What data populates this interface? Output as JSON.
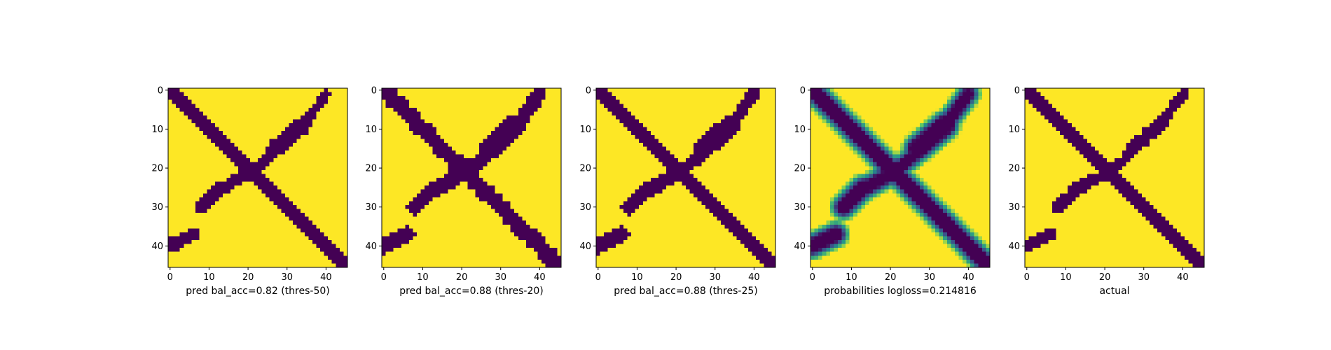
{
  "chart_data": [
    {
      "type": "heatmap",
      "title": "",
      "xlabel": "pred bal_acc=0.82 (thres-50)",
      "ylabel": "",
      "xlim": [
        -0.5,
        45.5
      ],
      "ylim": [
        45.5,
        -0.5
      ],
      "xticks": [
        0,
        10,
        20,
        30,
        40
      ],
      "yticks": [
        0,
        10,
        20,
        30,
        40
      ],
      "grid": false,
      "colormap": "viridis",
      "values": "binary",
      "colors": {
        "low": "#440154",
        "high": "#fde725"
      }
    },
    {
      "type": "heatmap",
      "title": "",
      "xlabel": "pred bal_acc=0.88 (thres-20)",
      "ylabel": "",
      "xlim": [
        -0.5,
        45.5
      ],
      "ylim": [
        45.5,
        -0.5
      ],
      "xticks": [
        0,
        10,
        20,
        30,
        40
      ],
      "yticks": [
        0,
        10,
        20,
        30,
        40
      ],
      "grid": false,
      "colormap": "viridis",
      "values": "binary",
      "colors": {
        "low": "#440154",
        "high": "#fde725"
      }
    },
    {
      "type": "heatmap",
      "title": "",
      "xlabel": "pred bal_acc=0.88 (thres-25)",
      "ylabel": "",
      "xlim": [
        -0.5,
        45.5
      ],
      "ylim": [
        45.5,
        -0.5
      ],
      "xticks": [
        0,
        10,
        20,
        30,
        40
      ],
      "yticks": [
        0,
        10,
        20,
        30,
        40
      ],
      "grid": false,
      "colormap": "viridis",
      "values": "binary",
      "colors": {
        "low": "#440154",
        "high": "#fde725"
      }
    },
    {
      "type": "heatmap",
      "title": "",
      "xlabel": "probabilities logloss=0.214816",
      "ylabel": "",
      "xlim": [
        -0.5,
        45.5
      ],
      "ylim": [
        45.5,
        -0.5
      ],
      "xticks": [
        0,
        10,
        20,
        30,
        40
      ],
      "yticks": [
        0,
        10,
        20,
        30,
        40
      ],
      "grid": false,
      "colormap": "viridis",
      "values": "continuous",
      "colors": {
        "low": "#440154",
        "mid": "#21918c",
        "high": "#fde725"
      }
    },
    {
      "type": "heatmap",
      "title": "",
      "xlabel": "actual",
      "ylabel": "",
      "xlim": [
        -0.5,
        45.5
      ],
      "ylim": [
        45.5,
        -0.5
      ],
      "xticks": [
        0,
        10,
        20,
        30,
        40
      ],
      "yticks": [
        0,
        10,
        20,
        30,
        40
      ],
      "grid": false,
      "colormap": "viridis",
      "values": "binary",
      "colors": {
        "low": "#440154",
        "high": "#fde725"
      }
    }
  ]
}
